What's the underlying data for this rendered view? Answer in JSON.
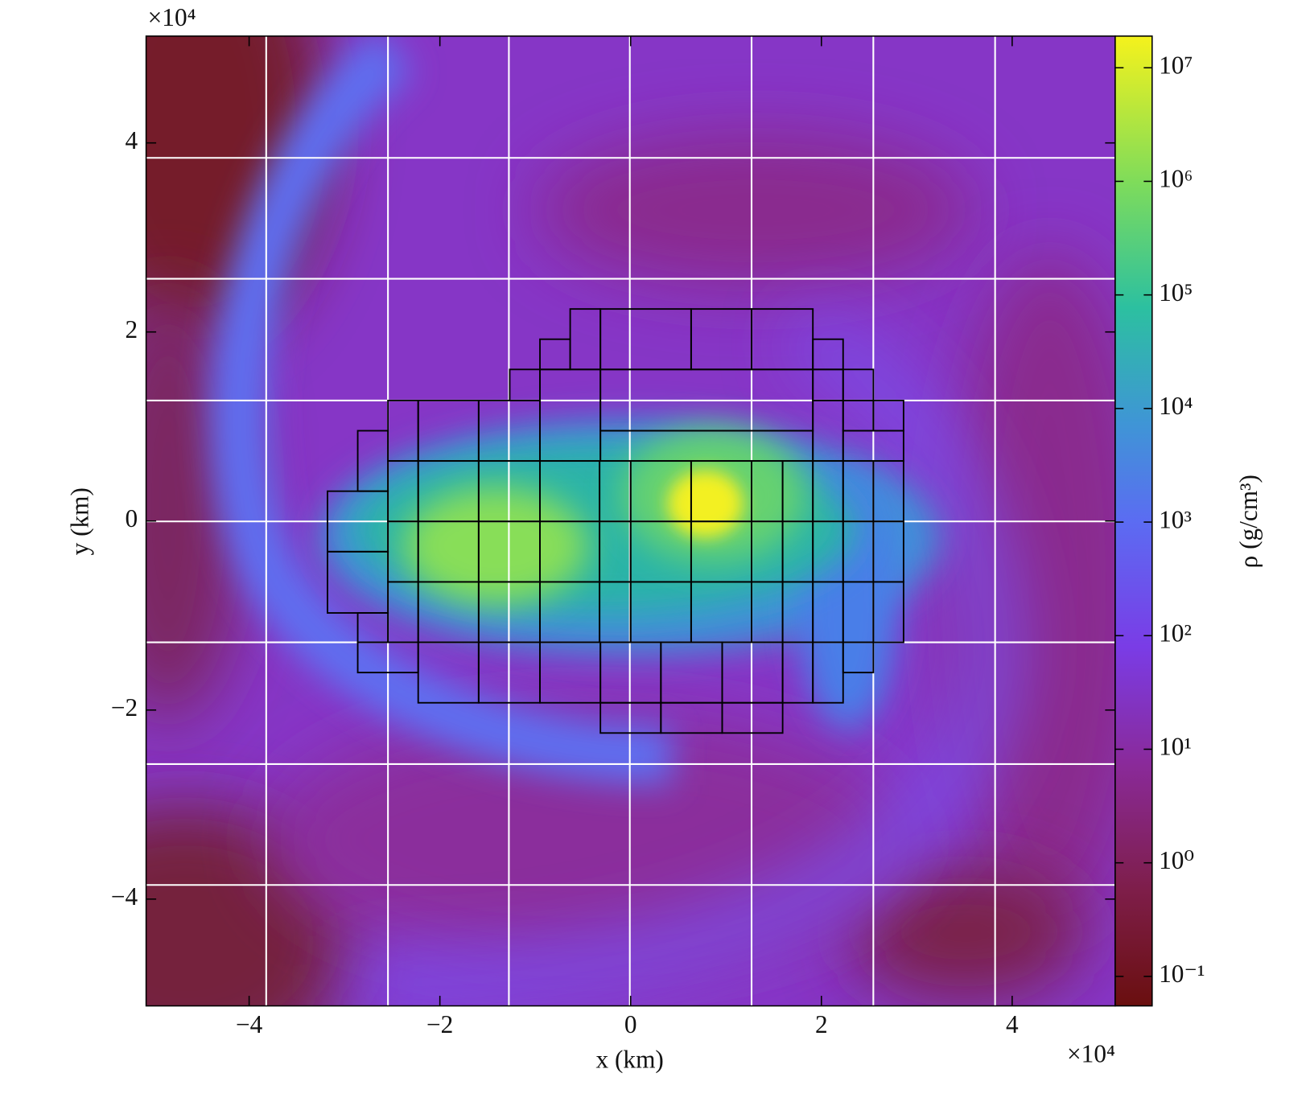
{
  "chart_data": {
    "type": "heatmap",
    "xlabel": "x  (km)",
    "ylabel": "y  (km)",
    "xlim": [
      -50800,
      50800
    ],
    "ylim": [
      -51300,
      51300
    ],
    "xticks": [
      {
        "value": -40000,
        "label": "−4"
      },
      {
        "value": -20000,
        "label": "−2"
      },
      {
        "value": 0,
        "label": "0"
      },
      {
        "value": 20000,
        "label": "2"
      },
      {
        "value": 40000,
        "label": "4"
      }
    ],
    "yticks": [
      {
        "value": -40000,
        "label": "−4"
      },
      {
        "value": -20000,
        "label": "−2"
      },
      {
        "value": 0,
        "label": "0"
      },
      {
        "value": 20000,
        "label": "2"
      },
      {
        "value": 40000,
        "label": "4"
      }
    ],
    "x_offset_label": "×10⁴",
    "y_offset_label": "×10⁴",
    "colorbar": {
      "label": "ρ  (g/cm³)",
      "log": true,
      "lim": [
        0.055,
        19000000
      ],
      "ticks": [
        {
          "value": 0.1,
          "label": "10⁻¹"
        },
        {
          "value": 1,
          "label": "10⁰"
        },
        {
          "value": 10,
          "label": "10¹"
        },
        {
          "value": 100,
          "label": "10²"
        },
        {
          "value": 1000,
          "label": "10³"
        },
        {
          "value": 10000,
          "label": "10⁴"
        },
        {
          "value": 100000,
          "label": "10⁵"
        },
        {
          "value": 1000000,
          "label": "10⁶"
        },
        {
          "value": 10000000,
          "label": "10⁷"
        }
      ]
    }
  }
}
